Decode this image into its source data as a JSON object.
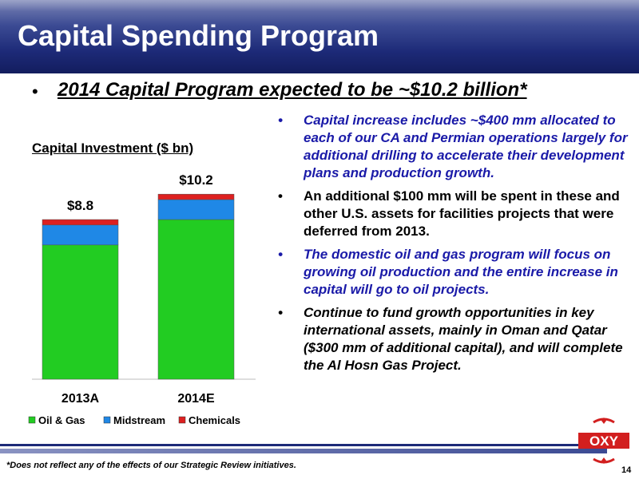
{
  "slide": {
    "title": "Capital Spending Program",
    "headline": "2014 Capital Program expected to be ~$10.2 billion*",
    "bullet_glyph": "•",
    "bullets": [
      {
        "text": "Capital increase includes ~$400 mm allocated to each of our CA and Permian operations largely for additional drilling to accelerate their development plans and production growth.",
        "style": "blue"
      },
      {
        "text": "An additional $100 mm will be spent in these and other U.S. assets for facilities projects that were deferred from 2013.",
        "style": "black"
      },
      {
        "text": "The domestic oil and gas program will focus on growing oil production and the entire increase in capital will go to oil projects.",
        "style": "blue"
      },
      {
        "text": "Continue to fund growth opportunities in key international assets, mainly in Oman and Qatar ($300 mm of additional capital), and will complete the Al Hosn Gas Project.",
        "style": "black-italic"
      }
    ],
    "footnote": "*Does not reflect any of the effects of our Strategic Review initiatives.",
    "page_number": "14",
    "logo_text": "OXY"
  },
  "colors": {
    "header": "#1d2a78",
    "blue_text": "#1a1aa8",
    "oil_gas": "#22cc22",
    "midstream": "#1f88e6",
    "chemicals": "#dd2020",
    "logo_red": "#d21f1f"
  },
  "chart_data": {
    "type": "bar",
    "stacked": true,
    "title": "Capital Investment ($ bn)",
    "categories": [
      "2013A",
      "2014E"
    ],
    "series": [
      {
        "name": "Oil & Gas",
        "color": "#22cc22",
        "values": [
          7.4,
          8.8
        ]
      },
      {
        "name": "Midstream",
        "color": "#1f88e6",
        "values": [
          1.1,
          1.1
        ]
      },
      {
        "name": "Chemicals",
        "color": "#dd2020",
        "values": [
          0.3,
          0.3
        ]
      }
    ],
    "totals": [
      8.8,
      10.2
    ],
    "total_labels": [
      "$8.8",
      "$10.2"
    ],
    "ylim": [
      0,
      11
    ],
    "grid": false,
    "legend": "bottom"
  }
}
